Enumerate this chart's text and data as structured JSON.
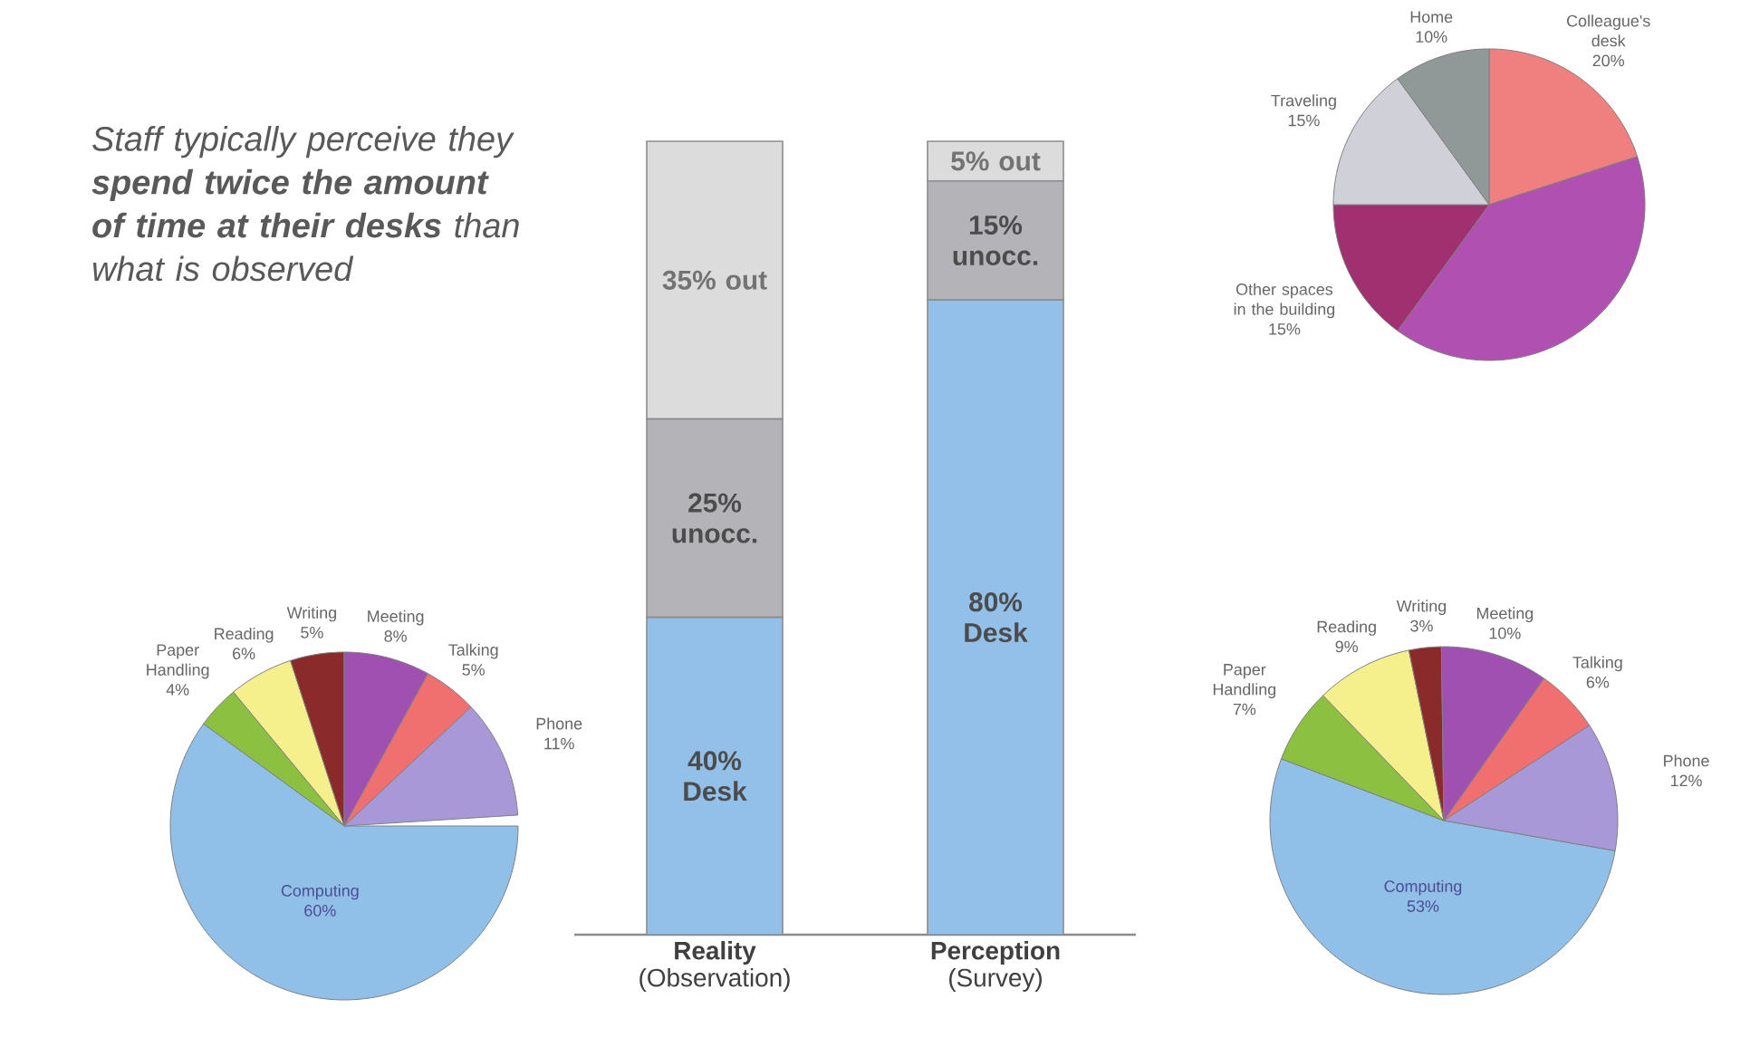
{
  "chart_data": [
    {
      "type": "bar",
      "stacked": true,
      "categories": [
        "**Reality** (Observation)",
        "**Perception** (Survey)"
      ],
      "series": [
        {
          "color": "#92c0e8",
          "values": [
            40,
            80
          ],
          "value_labels": [
            "40% Desk",
            "80% Desk"
          ]
        },
        {
          "color": "#b4b4b8",
          "values": [
            25,
            15
          ],
          "value_labels": [
            "25% unocc.",
            "15% unocc."
          ]
        },
        {
          "color": "#dcdcdc",
          "values": [
            35,
            5
          ],
          "value_labels": [
            "35% out",
            "5% out"
          ]
        }
      ],
      "annotations": [
        "Staff typically perceive they **spend twice the amount of time at their desks** than what is observed"
      ]
    },
    {
      "type": "pie",
      "categories": [
        "Colleague's desk",
        null,
        "Other spaces in the building",
        "Traveling",
        "Home"
      ],
      "values": [
        20,
        40,
        15,
        15,
        10
      ],
      "value_labels": [
        "20%",
        null,
        "15%",
        "15%",
        "10%"
      ],
      "colors": [
        "#f08080",
        "#b050b0",
        "#a03070",
        "#d0d0d8",
        "#909898"
      ]
    },
    {
      "type": "pie",
      "categories": [
        "Computing",
        "Paper Handling",
        "Reading",
        "Writing",
        "Meeting",
        "Talking",
        "Phone"
      ],
      "values": [
        60,
        4,
        6,
        5,
        8,
        5,
        11
      ],
      "value_labels": [
        "60%",
        "4%",
        "6%",
        "5%",
        "8%",
        "5%",
        "11%"
      ],
      "colors": [
        "#90c0e8",
        "#8cc040",
        "#f5f08c",
        "#8b2a2a",
        "#a050b0",
        "#f07070",
        "#a898d8"
      ]
    },
    {
      "type": "pie",
      "categories": [
        "Computing",
        "Paper Handling",
        "Reading",
        "Writing",
        "Meeting",
        "Talking",
        "Phone"
      ],
      "values": [
        53,
        7,
        9,
        3,
        10,
        6,
        12
      ],
      "value_labels": [
        "53%",
        "7%",
        "9%",
        "3%",
        "10%",
        "6%",
        "12%"
      ],
      "colors": [
        "#90c0e8",
        "#8cc040",
        "#f5f08c",
        "#8b2a2a",
        "#a050b0",
        "#f07070",
        "#a898d8"
      ]
    }
  ]
}
